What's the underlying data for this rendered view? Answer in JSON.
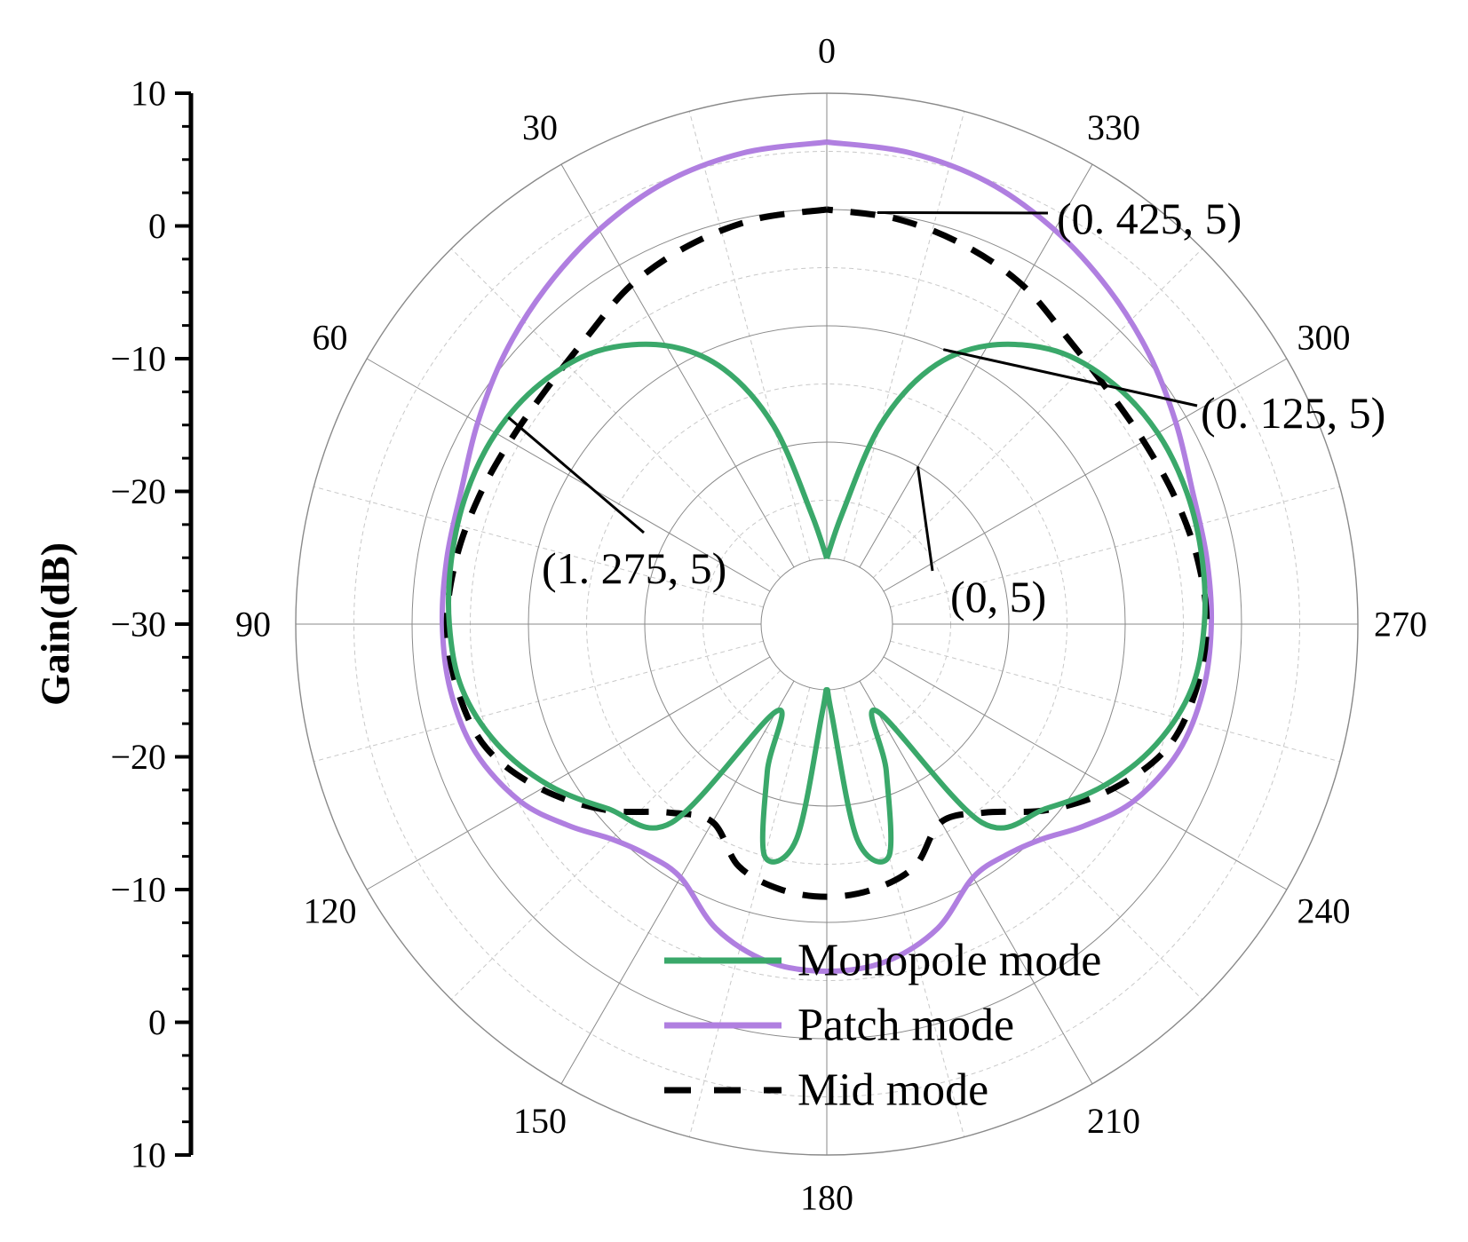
{
  "chart_data": {
    "type": "polar_line",
    "title": "",
    "ylabel": "Gain(dB)",
    "angle_unit": "degrees",
    "angle_direction": "counterclockwise",
    "zero_location": "top",
    "r_range": [
      -30,
      10
    ],
    "r_ticks": [
      -30,
      -20,
      -10,
      0,
      10
    ],
    "angle_ticks": [
      0,
      30,
      60,
      90,
      120,
      150,
      180,
      210,
      240,
      270,
      300,
      330
    ],
    "gridlines": true,
    "y_axis_labels": [
      "10",
      "0",
      "−10",
      "−20",
      "−30",
      "−20",
      "−10",
      "0",
      "10"
    ],
    "series": [
      {
        "name": "Monopole mode",
        "color": "#3aa86a",
        "dash": "solid",
        "angles": [
          0,
          8,
          15,
          22,
          30,
          40,
          50,
          60,
          70,
          80,
          90,
          100,
          110,
          120,
          130,
          142,
          150,
          158,
          165,
          172,
          177,
          180,
          183,
          188,
          195,
          202,
          210,
          218,
          230,
          240,
          250,
          260,
          270,
          280,
          290,
          300,
          310,
          320,
          330,
          338,
          345,
          352,
          360
        ],
        "values": [
          -30,
          -26,
          -18,
          -12,
          -8,
          -5,
          -3.5,
          -2.8,
          -2.7,
          -2.9,
          -3.2,
          -3.8,
          -5.5,
          -8,
          -11,
          -14,
          -27,
          -22,
          -15,
          -17,
          -28,
          -30,
          -28,
          -17,
          -15,
          -22,
          -27,
          -14,
          -11,
          -8,
          -5.5,
          -3.8,
          -3.2,
          -2.9,
          -2.7,
          -2.8,
          -3.5,
          -5,
          -8,
          -12,
          -18,
          -26,
          -30
        ]
      },
      {
        "name": "Patch mode",
        "color": "#b07fe0",
        "dash": "solid",
        "angles": [
          0,
          10,
          20,
          30,
          40,
          50,
          60,
          70,
          80,
          90,
          100,
          110,
          120,
          128,
          135,
          142,
          150,
          160,
          170,
          180,
          190,
          200,
          210,
          218,
          225,
          232,
          240,
          250,
          260,
          270,
          280,
          290,
          300,
          310,
          320,
          330,
          340,
          350,
          360
        ],
        "values": [
          5.8,
          5.5,
          4.8,
          3.5,
          2,
          0.5,
          -1,
          -2.2,
          -2.5,
          -2.6,
          -2.8,
          -3.5,
          -5.2,
          -7.5,
          -9.5,
          -10.5,
          -10.5,
          -7.8,
          -6.2,
          -5.8,
          -6.2,
          -7.8,
          -10.5,
          -10.5,
          -9.5,
          -7.5,
          -5.2,
          -3.5,
          -2.8,
          -2.6,
          -2.5,
          -2.2,
          -1,
          0.5,
          2,
          3.5,
          4.8,
          5.5,
          5.8
        ]
      },
      {
        "name": "Mid mode",
        "color": "#000000",
        "dash": "dashed",
        "angles": [
          0,
          10,
          20,
          30,
          40,
          50,
          60,
          70,
          80,
          90,
          100,
          110,
          120,
          130,
          140,
          150,
          160,
          170,
          180,
          190,
          200,
          210,
          220,
          230,
          240,
          250,
          260,
          270,
          280,
          290,
          300,
          310,
          320,
          330,
          340,
          350,
          360
        ],
        "values": [
          0,
          -0.3,
          -1,
          -2,
          -3.5,
          -4.2,
          -4.2,
          -3.8,
          -3.3,
          -3,
          -3.4,
          -4.5,
          -7.3,
          -10.8,
          -14.5,
          -16,
          -13.5,
          -12.5,
          -12.2,
          -12.5,
          -13.5,
          -16,
          -14.5,
          -10.8,
          -7.3,
          -4.5,
          -3.4,
          -3,
          -3.3,
          -3.8,
          -4.2,
          -4.2,
          -3.5,
          -2,
          -1,
          -0.3,
          0
        ]
      }
    ],
    "annotations": [
      {
        "text": "(0. 425, 5)",
        "target_angle": 353,
        "target_value": 0
      },
      {
        "text": "(0. 125, 5)",
        "target_angle": 337,
        "target_value": -10
      },
      {
        "text": "(1. 275, 5)",
        "target_angle": 57,
        "target_value": -3
      },
      {
        "text": "(0, 5)",
        "target_angle": 330,
        "target_value": -20
      }
    ],
    "legend_position": "bottom-right",
    "legend": [
      "Monopole mode",
      "Patch mode",
      "Mid mode"
    ]
  }
}
